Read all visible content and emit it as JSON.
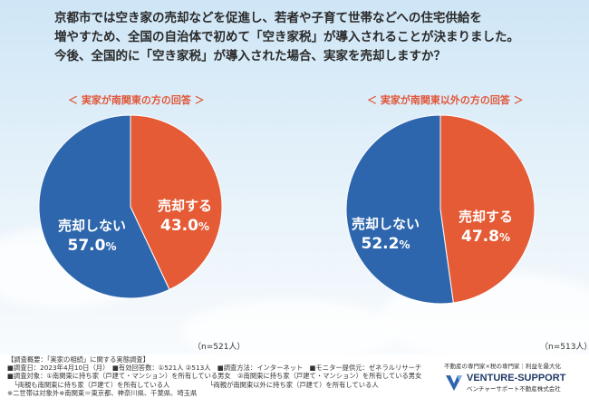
{
  "question": {
    "line1": "京都市では空き家の売却などを促進し、若者や子育て世帯などへの住宅供給を",
    "line2": "増やすため、全国の自治体で初めて「空き家税」が導入されることが決まりました。",
    "line3": "今後、全国的に「空き家税」が導入された場合、実家を売却しますか？"
  },
  "colors": {
    "sell": "#e45b36",
    "not_sell": "#2e66ad",
    "accent": "#e0573a"
  },
  "chart_data": [
    {
      "type": "pie",
      "title": "＜ 実家が南関東の方の回答 ＞",
      "labels": [
        "売却する",
        "売却しない"
      ],
      "values": [
        43.0,
        57.0
      ],
      "value_texts": [
        "43.0",
        "57.0"
      ],
      "unit": "%",
      "n_text": "（n=521人）"
    },
    {
      "type": "pie",
      "title": "＜ 実家が南関東以外の方の回答 ＞",
      "labels": [
        "売却する",
        "売却しない"
      ],
      "values": [
        47.8,
        52.2
      ],
      "value_texts": [
        "47.8",
        "52.2"
      ],
      "unit": "%",
      "n_text": "（n=513人）"
    }
  ],
  "notes": {
    "line1": "【調査概要：「実家の相続」に関する実態調査】",
    "line2": "■調査日：2023年4月10日（月）　■有効回答数：①521人 ②513人　■調査方法：インターネット　■モニター提供元：ゼネラルリサーチ",
    "line3": "■調査対象：①南関東に持ち家（戸建て・マンション）を所有している男女　②南関東に持ち家（戸建て・マンション）を所有している男女",
    "line4": "　└両親も南関東に持ち家（戸建て）を所有している人　　　　　　└両親が南関東以外に持ち家（戸建て）を所有している人",
    "line5": "※二世帯は対象外※南関東＝東京都、神奈川県、千葉県、埼玉県"
  },
  "brand": {
    "tagline": "不動産の専門家×税の専門家｜利益を最大化",
    "name": "VENTURE-SUPPORT",
    "sub": "ベンチャーサポート不動産株式会社"
  }
}
